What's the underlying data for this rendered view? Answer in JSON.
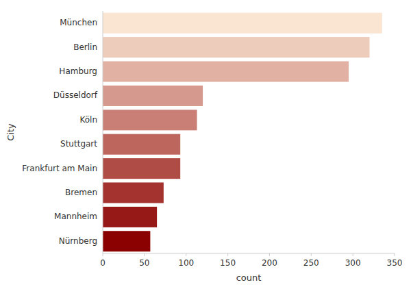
{
  "chart_data": {
    "type": "bar",
    "orientation": "horizontal",
    "categories": [
      "Nürnberg",
      "Mannheim",
      "Bremen",
      "Frankfurt am Main",
      "Stuttgart",
      "Köln",
      "Düsseldorf",
      "Hamburg",
      "Berlin",
      "München"
    ],
    "values": [
      57,
      65,
      73,
      93,
      93,
      113,
      120,
      295,
      320,
      335
    ],
    "colors": [
      "#8b0000",
      "#971917",
      "#a4332f",
      "#b04c46",
      "#bc665e",
      "#c97f75",
      "#d5998d",
      "#e1b2a4",
      "#eeccbc",
      "#fae5d3"
    ],
    "xlabel": "count",
    "ylabel": "City",
    "xlim": [
      0,
      350
    ],
    "xticks": [
      0,
      50,
      100,
      150,
      200,
      250,
      300,
      350
    ],
    "grid": false
  }
}
